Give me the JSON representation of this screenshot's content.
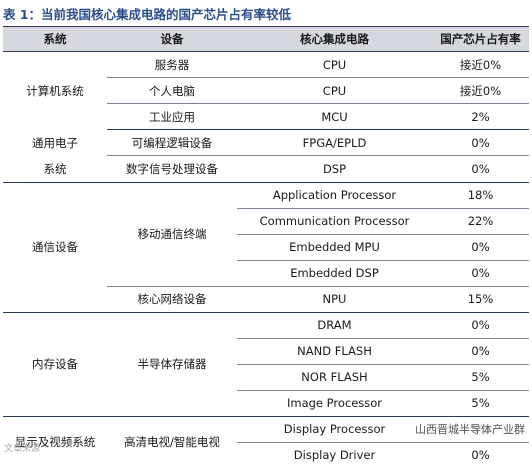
{
  "title": "表 1：当前我国核心集成电路的国产芯片占有率较低",
  "columns": [
    "系统",
    "设备",
    "核心集成电路",
    "国产芯片占有率"
  ],
  "rows": [
    {
      "system": "计算机系统",
      "device": "服务器",
      "chip": "CPU",
      "share": "接近0%"
    },
    {
      "system": "",
      "device": "个人电脑",
      "chip": "CPU",
      "share": "接近0%"
    },
    {
      "system": "",
      "device": "工业应用",
      "chip": "MCU",
      "share": "2%"
    },
    {
      "system": "通用电子系统",
      "device": "可编程逻辑设备",
      "chip": "FPGA/EPLD",
      "share": "0%"
    },
    {
      "system": "",
      "device": "数字信号处理设备",
      "chip": "DSP",
      "share": "0%"
    },
    {
      "system": "通信设备",
      "device": "移动通信终端",
      "chip": "Application Processor",
      "share": "18%"
    },
    {
      "system": "",
      "device": "",
      "chip": "Communication Processor",
      "share": "22%"
    },
    {
      "system": "",
      "device": "",
      "chip": "Embedded MPU",
      "share": "0%"
    },
    {
      "system": "",
      "device": "",
      "chip": "Embedded DSP",
      "share": "0%"
    },
    {
      "system": "",
      "device": "核心网络设备",
      "chip": "NPU",
      "share": "15%"
    },
    {
      "system": "内存设备",
      "device": "半导体存储器",
      "chip": "DRAM",
      "share": "0%"
    },
    {
      "system": "",
      "device": "",
      "chip": "NAND FLASH",
      "share": "0%"
    },
    {
      "system": "",
      "device": "",
      "chip": "NOR FLASH",
      "share": "5%"
    },
    {
      "system": "",
      "device": "",
      "chip": "Image Processor",
      "share": "5%"
    },
    {
      "system": "显示及视频系统",
      "device": "高清电视/智能电视",
      "chip": "Display Processor",
      "share": "5%"
    },
    {
      "system": "",
      "device": "",
      "chip": "Display Driver",
      "share": "0%"
    }
  ],
  "watermark": "山西晋城半导体产业群",
  "watermark_small": "文章来源"
}
